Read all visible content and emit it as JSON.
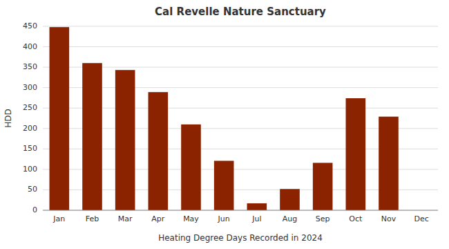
{
  "chart_data": {
    "type": "bar",
    "title": "Cal Revelle Nature Sanctuary",
    "xlabel": "Heating Degree Days Recorded in 2024",
    "ylabel": "HDD",
    "categories": [
      "Jan",
      "Feb",
      "Mar",
      "Apr",
      "May",
      "Jun",
      "Jul",
      "Aug",
      "Sep",
      "Oct",
      "Nov",
      "Dec"
    ],
    "values": [
      448,
      360,
      343,
      289,
      210,
      121,
      17,
      52,
      116,
      274,
      229,
      0
    ],
    "color": "#8B2200",
    "ylim": [
      0,
      450
    ],
    "yticks": [
      0,
      50,
      100,
      150,
      200,
      250,
      300,
      350,
      400,
      450
    ],
    "grid": true
  }
}
